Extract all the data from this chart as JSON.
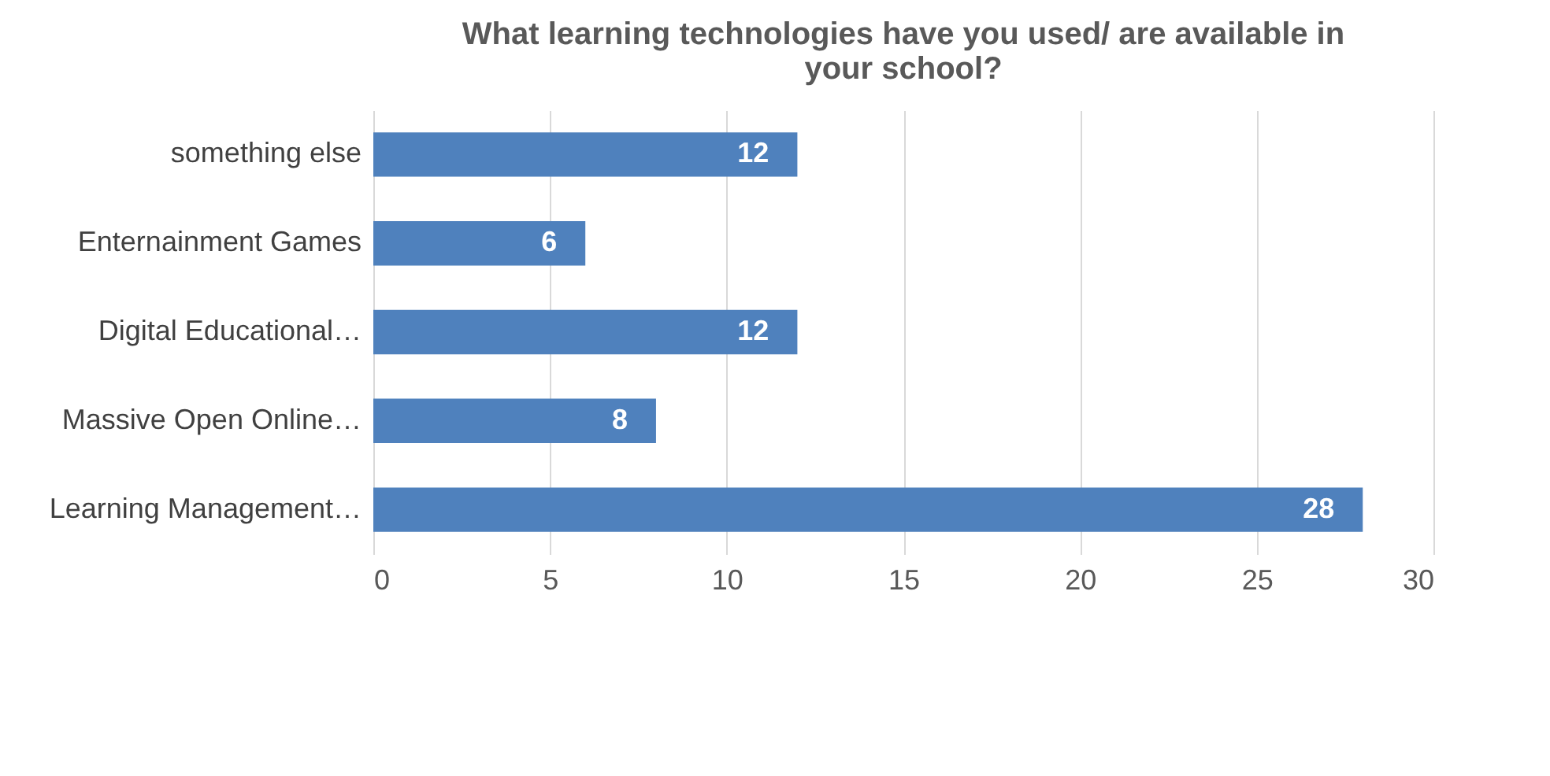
{
  "chart_data": {
    "type": "bar",
    "orientation": "horizontal",
    "title": "What learning technologies have you used/ are available in your school?",
    "categories": [
      "something else",
      "Enternainment Games",
      "Digital Educational…",
      "Massive Open Online…",
      "Learning Management…"
    ],
    "values": [
      12,
      6,
      12,
      8,
      28
    ],
    "color": "#4f81bd",
    "xlim": [
      0,
      30
    ],
    "xticks": [
      0,
      5,
      10,
      15,
      20,
      25,
      30
    ],
    "grid": "x",
    "data_labels": true
  }
}
